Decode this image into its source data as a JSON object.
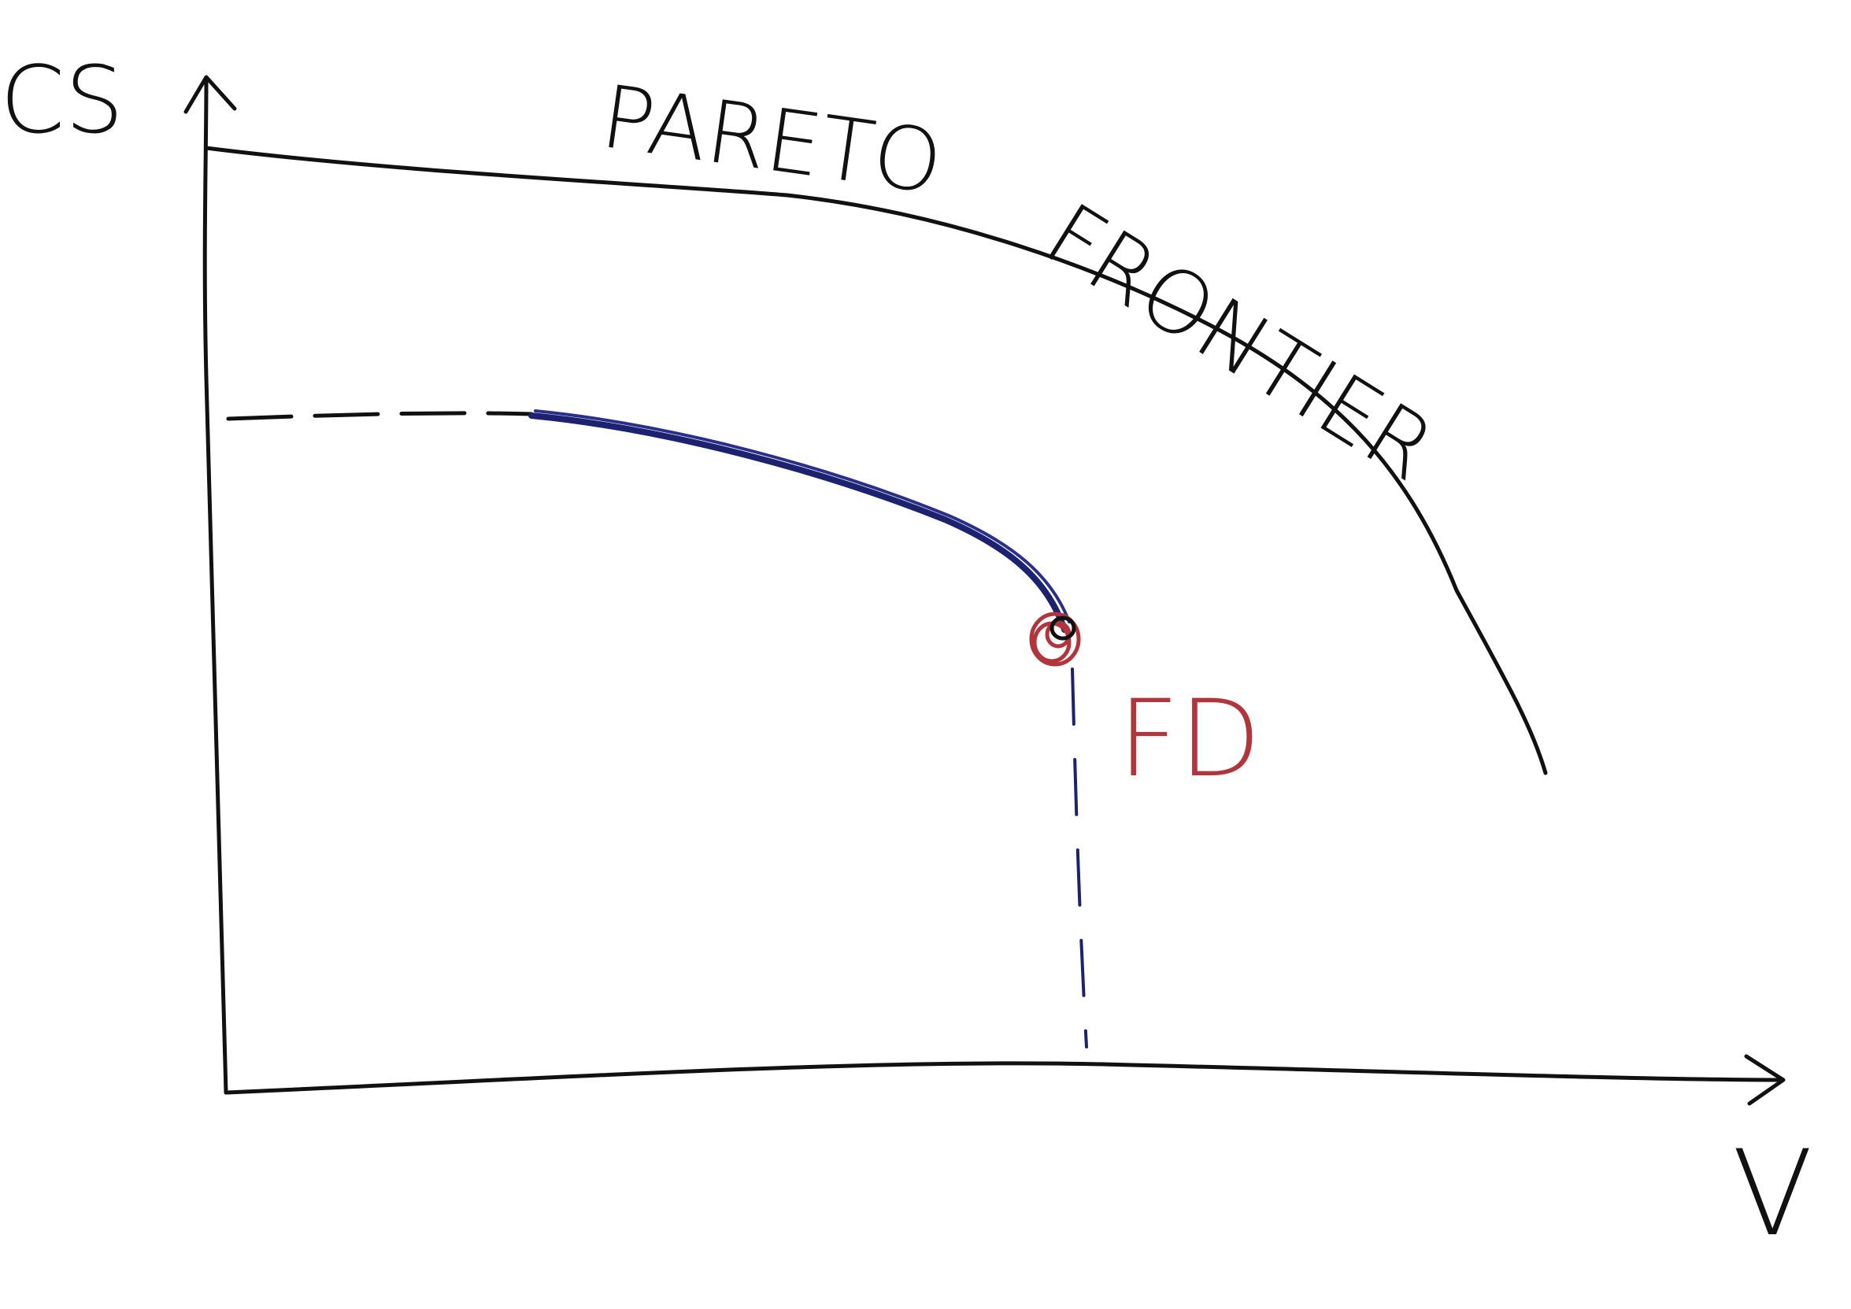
{
  "diagram": {
    "y_axis_label": "CS",
    "x_axis_label": "V",
    "frontier_label_word1": "PARETO",
    "frontier_label_word2": "FRONTIER",
    "point_label": "FD"
  },
  "colors": {
    "ink": "#111111",
    "blue_ink": "#1c2170",
    "red_ink": "#b0353c"
  }
}
